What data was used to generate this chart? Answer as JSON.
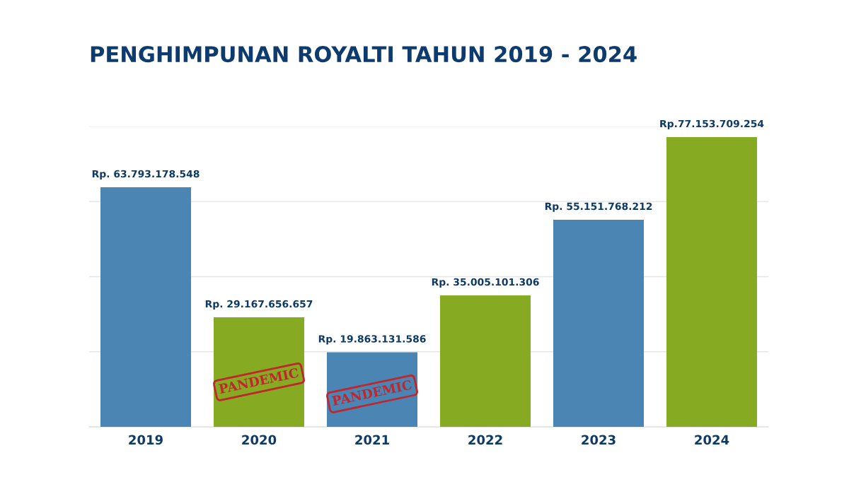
{
  "chart_data": {
    "type": "bar",
    "title": "PENGHIMPUNAN ROYALTI TAHUN 2019 - 2024",
    "categories": [
      "2019",
      "2020",
      "2021",
      "2022",
      "2023",
      "2024"
    ],
    "values": [
      63793178548,
      29167656657,
      19863131586,
      35005101306,
      55151768212,
      77153709254
    ],
    "colors": [
      "#4a85b3",
      "#86aa22",
      "#4a85b3",
      "#86aa22",
      "#4a85b3",
      "#86aa22"
    ],
    "value_labels": [
      "Rp. 63.793.178.548",
      "Rp. 29.167.656.657",
      "Rp. 19.863.131.586",
      "Rp. 35.005.101.306",
      "Rp. 55.151.768.212",
      "Rp.77.153.709.254"
    ],
    "ylim": [
      0,
      80000000000
    ],
    "yticks": [
      {
        "value": 0,
        "label": null
      },
      {
        "value": 20000000000,
        "label": null
      },
      {
        "value": 40000000000,
        "label": null
      },
      {
        "value": 60000000000,
        "label": null
      },
      {
        "value": 80000000000,
        "label": null
      }
    ],
    "tick_labels": "x",
    "grid": "y",
    "annotations": [
      "PANDEMIC",
      "PANDEMIC"
    ]
  }
}
